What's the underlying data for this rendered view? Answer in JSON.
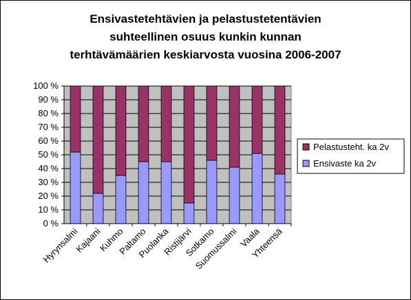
{
  "chart_data": {
    "type": "bar",
    "stacked": true,
    "percent": true,
    "title_lines": [
      "Ensivastetehtävien ja pelastustetentävien",
      "suhteellinen osuus kunkin kunnan",
      "terhtävämäärien keskiarvosta vuosina 2006-2007"
    ],
    "categories": [
      "Hyrynsalmi",
      "Kajaani",
      "Kuhmo",
      "Paltamo",
      "Puolanka",
      "Ristijärvi",
      "Sotkamo",
      "Suomussalmi",
      "Vaala",
      "Yhteensä"
    ],
    "series": [
      {
        "name": "Ensivaste ka 2v",
        "color": "#9999ff",
        "values": [
          52,
          22,
          35,
          45,
          45,
          15,
          46,
          41,
          51,
          36
        ]
      },
      {
        "name": "Pelastusteht. ka 2v",
        "color": "#993366",
        "values": [
          48,
          78,
          65,
          55,
          55,
          85,
          54,
          59,
          49,
          64
        ]
      }
    ],
    "y_ticks": [
      "0 %",
      "10 %",
      "20 %",
      "30 %",
      "40 %",
      "50 %",
      "60 %",
      "70 %",
      "80 %",
      "90 %",
      "100 %"
    ],
    "ylim": [
      0,
      100
    ],
    "grid": true,
    "plot_background": "#c0c0c0",
    "legend_position": "right",
    "legend_order": [
      "Pelastusteht. ka 2v",
      "Ensivaste ka 2v"
    ]
  }
}
